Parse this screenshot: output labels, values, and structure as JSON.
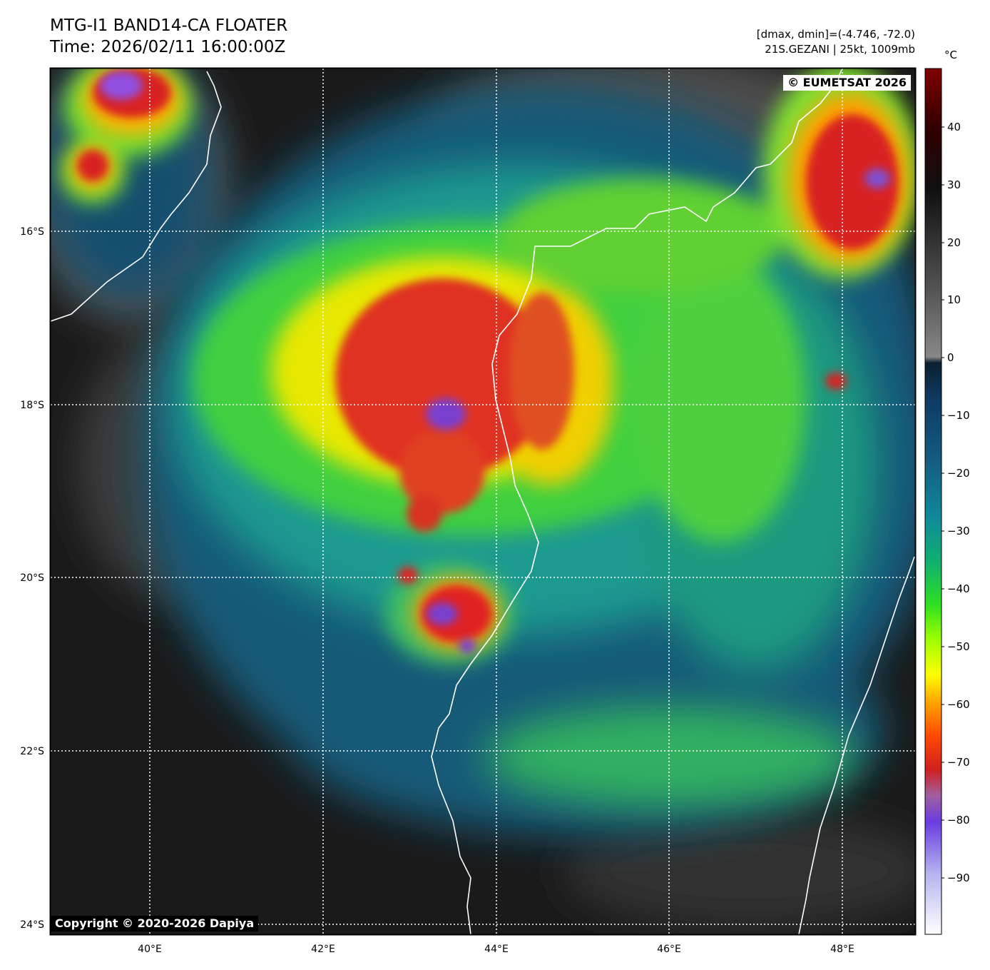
{
  "header": {
    "title_line1": "MTG-I1 BAND14-CA FLOATER",
    "title_line2": "Time: 2026/02/11 16:00:00Z",
    "info_line1": "[dmax, dmin]=(-4.746, -72.0)",
    "info_line2": "21S.GEZANI | 25kt, 1009mb"
  },
  "map": {
    "lon_labels": [
      "40°E",
      "42°E",
      "44°E",
      "46°E",
      "48°E"
    ],
    "lat_labels": [
      "16°S",
      "18°S",
      "20°S",
      "22°S",
      "24°S"
    ],
    "coastline_color": "#ffffff",
    "gridline_style": "dotted white"
  },
  "colorbar": {
    "unit": "°C",
    "ticks": [
      "40",
      "30",
      "20",
      "10",
      "0",
      "−10",
      "−20",
      "−30",
      "−40",
      "−50",
      "−60",
      "−70",
      "−80",
      "−90"
    ],
    "range": [
      -100,
      50
    ]
  },
  "credits": {
    "eumetsat": "© EUMETSAT 2026",
    "dapiya": "Copyright © 2020-2026 Dapiya"
  }
}
